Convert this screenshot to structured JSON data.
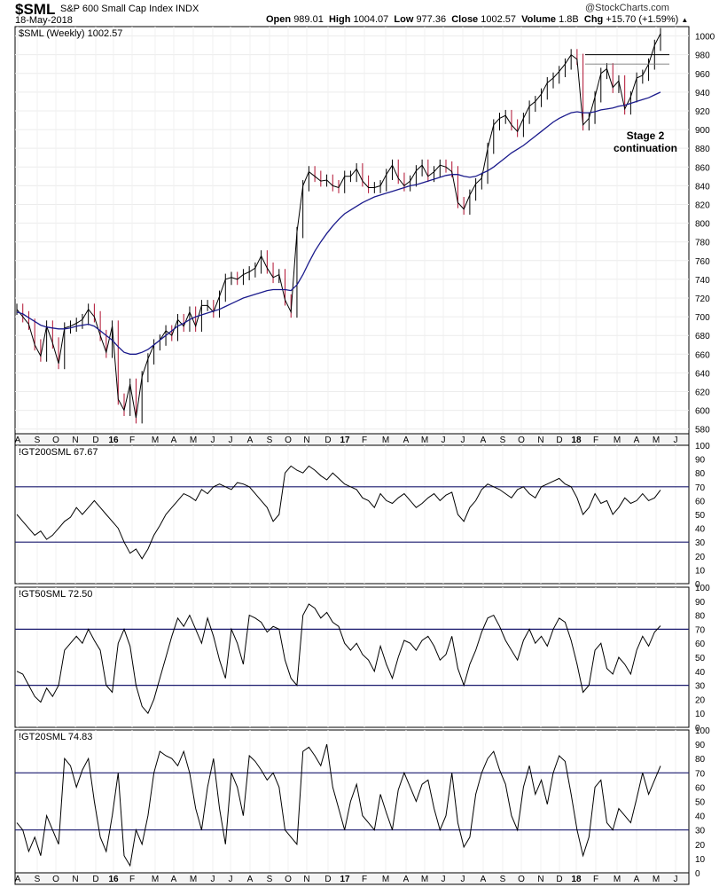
{
  "header": {
    "symbol": "$SML",
    "index_name": "S&P 600 Small Cap Index",
    "exchange": "INDX",
    "date": "18-May-2018",
    "credit": "@StockCharts.com",
    "open_label": "Open",
    "open": "989.01",
    "high_label": "High",
    "high": "1004.07",
    "low_label": "Low",
    "low": "977.36",
    "close_label": "Close",
    "close": "1002.57",
    "volume_label": "Volume",
    "volume": "1.8B",
    "chg_label": "Chg",
    "chg": "+15.70 (+1.59%)"
  },
  "chart_data": [
    {
      "type": "line",
      "title": "$SML (Weekly) 1002.57",
      "series": [
        {
          "name": "$SML (Weekly)",
          "y": [
            708,
            700,
            692,
            670,
            658,
            690,
            672,
            650,
            688,
            690,
            693,
            697,
            708,
            700,
            680,
            662,
            690,
            612,
            600,
            628,
            592,
            636,
            655,
            670,
            675,
            685,
            680,
            697,
            690,
            705,
            690,
            712,
            712,
            705,
            722,
            740,
            742,
            740,
            745,
            748,
            752,
            765,
            752,
            742,
            745,
            718,
            705,
            790,
            840,
            855,
            850,
            845,
            846,
            840,
            838,
            850,
            850,
            858,
            845,
            838,
            838,
            840,
            852,
            862,
            848,
            840,
            845,
            856,
            862,
            850,
            855,
            862,
            860,
            855,
            822,
            815,
            830,
            842,
            848,
            880,
            905,
            912,
            915,
            905,
            898,
            912,
            925,
            930,
            938,
            950,
            955,
            962,
            970,
            980,
            975,
            905,
            912,
            935,
            960,
            965,
            945,
            952,
            922,
            935,
            955,
            958,
            970,
            990,
            1002.57
          ]
        },
        {
          "name": "Moving average",
          "color": "#1a1a8c",
          "y": [
            705,
            703,
            699,
            695,
            691,
            689,
            688,
            687,
            687,
            688,
            690,
            691,
            692,
            690,
            685,
            680,
            675,
            668,
            662,
            660,
            660,
            662,
            665,
            670,
            675,
            680,
            685,
            690,
            693,
            697,
            700,
            702,
            704,
            706,
            708,
            711,
            714,
            717,
            720,
            722,
            724,
            726,
            728,
            729,
            729,
            729,
            728,
            734,
            745,
            758,
            770,
            780,
            789,
            797,
            804,
            810,
            814,
            818,
            822,
            825,
            828,
            830,
            832,
            834,
            836,
            838,
            840,
            841,
            843,
            845,
            847,
            849,
            851,
            852,
            852,
            850,
            849,
            850,
            853,
            856,
            860,
            865,
            870,
            875,
            879,
            883,
            888,
            893,
            898,
            903,
            908,
            912,
            915,
            918,
            919,
            918,
            918,
            919,
            921,
            922,
            923,
            925,
            926,
            928,
            930,
            932,
            934,
            937,
            940
          ]
        }
      ],
      "ylim": [
        575,
        1010
      ],
      "yticks": [
        580,
        600,
        620,
        640,
        660,
        680,
        700,
        720,
        740,
        760,
        780,
        800,
        820,
        840,
        860,
        880,
        900,
        920,
        940,
        960,
        980,
        1000
      ],
      "x_labels": [
        "A",
        "S",
        "O",
        "N",
        "D",
        "16",
        "F",
        "M",
        "A",
        "M",
        "J",
        "J",
        "A",
        "S",
        "O",
        "N",
        "D",
        "17",
        "F",
        "M",
        "A",
        "M",
        "J",
        "J",
        "A",
        "S",
        "O",
        "N",
        "D",
        "18",
        "F",
        "M",
        "A",
        "M",
        "J"
      ],
      "annotation": "Stage 2\ncontinuation",
      "resistance_level": 980,
      "grid": true
    },
    {
      "type": "line",
      "title": "!GT200SML 67.67",
      "series": [
        {
          "name": "!GT200SML",
          "y": [
            50,
            45,
            40,
            35,
            38,
            32,
            35,
            40,
            45,
            48,
            55,
            50,
            55,
            60,
            55,
            50,
            45,
            40,
            30,
            22,
            25,
            18,
            25,
            35,
            42,
            50,
            55,
            60,
            65,
            63,
            60,
            68,
            65,
            70,
            72,
            70,
            68,
            73,
            72,
            70,
            65,
            60,
            55,
            45,
            50,
            80,
            85,
            82,
            80,
            85,
            82,
            78,
            75,
            80,
            76,
            72,
            70,
            68,
            62,
            60,
            55,
            65,
            60,
            58,
            62,
            65,
            60,
            55,
            58,
            62,
            65,
            60,
            64,
            66,
            50,
            45,
            55,
            60,
            68,
            72,
            70,
            68,
            65,
            62,
            68,
            70,
            65,
            62,
            70,
            72,
            74,
            76,
            72,
            70,
            62,
            50,
            55,
            65,
            58,
            60,
            50,
            55,
            62,
            58,
            60,
            65,
            60,
            62,
            67.67
          ]
        }
      ],
      "ylim": [
        0,
        100
      ],
      "yticks": [
        0,
        10,
        20,
        30,
        40,
        50,
        60,
        70,
        80,
        90,
        100
      ],
      "ref_lines": [
        70,
        30
      ]
    },
    {
      "type": "line",
      "title": "!GT50SML 72.50",
      "series": [
        {
          "name": "!GT50SML",
          "y": [
            40,
            38,
            30,
            22,
            18,
            28,
            22,
            30,
            55,
            60,
            65,
            60,
            70,
            62,
            55,
            30,
            25,
            60,
            70,
            58,
            30,
            15,
            10,
            20,
            35,
            50,
            65,
            78,
            72,
            80,
            70,
            60,
            78,
            65,
            48,
            35,
            70,
            60,
            45,
            80,
            78,
            75,
            68,
            72,
            70,
            48,
            35,
            30,
            80,
            88,
            85,
            78,
            82,
            75,
            72,
            60,
            55,
            60,
            52,
            48,
            40,
            58,
            45,
            35,
            50,
            62,
            60,
            55,
            62,
            65,
            58,
            48,
            52,
            65,
            42,
            30,
            45,
            55,
            68,
            78,
            80,
            72,
            62,
            55,
            48,
            62,
            70,
            60,
            65,
            58,
            70,
            78,
            75,
            62,
            45,
            25,
            30,
            55,
            60,
            42,
            38,
            50,
            45,
            38,
            55,
            65,
            58,
            68,
            72.5
          ]
        }
      ],
      "ylim": [
        0,
        100
      ],
      "yticks": [
        0,
        10,
        20,
        30,
        40,
        50,
        60,
        70,
        80,
        90,
        100
      ],
      "ref_lines": [
        70,
        30
      ]
    },
    {
      "type": "line",
      "title": "!GT20SML 74.83",
      "series": [
        {
          "name": "!GT20SML",
          "y": [
            35,
            30,
            15,
            25,
            12,
            40,
            30,
            20,
            80,
            75,
            60,
            72,
            80,
            50,
            25,
            15,
            40,
            70,
            12,
            5,
            30,
            20,
            40,
            70,
            85,
            82,
            80,
            75,
            85,
            70,
            45,
            30,
            60,
            80,
            45,
            20,
            70,
            60,
            40,
            82,
            78,
            72,
            65,
            70,
            60,
            30,
            25,
            20,
            85,
            88,
            82,
            75,
            90,
            60,
            45,
            30,
            50,
            62,
            40,
            35,
            30,
            55,
            42,
            30,
            58,
            70,
            60,
            50,
            62,
            65,
            45,
            30,
            40,
            70,
            35,
            18,
            25,
            55,
            70,
            80,
            85,
            72,
            62,
            40,
            30,
            60,
            75,
            55,
            65,
            48,
            70,
            82,
            78,
            55,
            30,
            12,
            25,
            60,
            65,
            35,
            30,
            45,
            40,
            35,
            52,
            70,
            55,
            65,
            74.83
          ]
        }
      ],
      "ylim": [
        0,
        100
      ],
      "yticks": [
        0,
        10,
        20,
        30,
        40,
        50,
        60,
        70,
        80,
        90,
        100
      ],
      "ref_lines": [
        70,
        30
      ]
    }
  ]
}
